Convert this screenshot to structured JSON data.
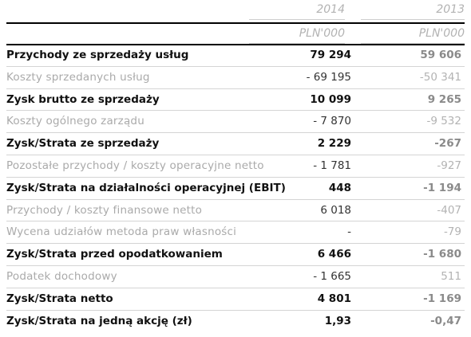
{
  "header": {
    "year_current": "2014",
    "year_previous": "2013",
    "unit_current": "PLN'000",
    "unit_previous": "PLN'000"
  },
  "rows": [
    {
      "label": "Przychody ze sprzedaży usług",
      "v2014": "79 294",
      "v2013": "59 606",
      "style": "bold"
    },
    {
      "label": "Koszty sprzedanych usług",
      "v2014": "- 69 195",
      "v2013": "-50 341",
      "style": "light"
    },
    {
      "label": "Zysk brutto ze sprzedaży",
      "v2014": "10 099",
      "v2013": "9 265",
      "style": "bold"
    },
    {
      "label": "Koszty ogólnego zarządu",
      "v2014": "- 7 870",
      "v2013": "-9 532",
      "style": "light"
    },
    {
      "label": "Zysk/Strata ze sprzedaży",
      "v2014": "2 229",
      "v2013": "-267",
      "style": "bold"
    },
    {
      "label": "Pozostałe przychody / koszty operacyjne netto",
      "v2014": "- 1 781",
      "v2013": "-927",
      "style": "light"
    },
    {
      "label": "Zysk/Strata na działalności operacyjnej (EBIT)",
      "v2014": "448",
      "v2013": "-1 194",
      "style": "bold"
    },
    {
      "label": "Przychody / koszty finansowe netto",
      "v2014": "6 018",
      "v2013": "-407",
      "style": "light"
    },
    {
      "label": "Wycena udziałów metoda praw własności",
      "v2014": "-",
      "v2013": "-79",
      "style": "light"
    },
    {
      "label": "Zysk/Strata przed opodatkowaniem",
      "v2014": "6 466",
      "v2013": "-1 680",
      "style": "bold"
    },
    {
      "label": "Podatek dochodowy",
      "v2014": "- 1 665",
      "v2013": "511",
      "style": "light"
    },
    {
      "label": "Zysk/Strata netto",
      "v2014": "4 801",
      "v2013": "-1 169",
      "style": "bold"
    },
    {
      "label": "Zysk/Strata na jedną akcję (zł)",
      "v2014": "1,93",
      "v2013": "-0,47",
      "style": "bold"
    }
  ]
}
